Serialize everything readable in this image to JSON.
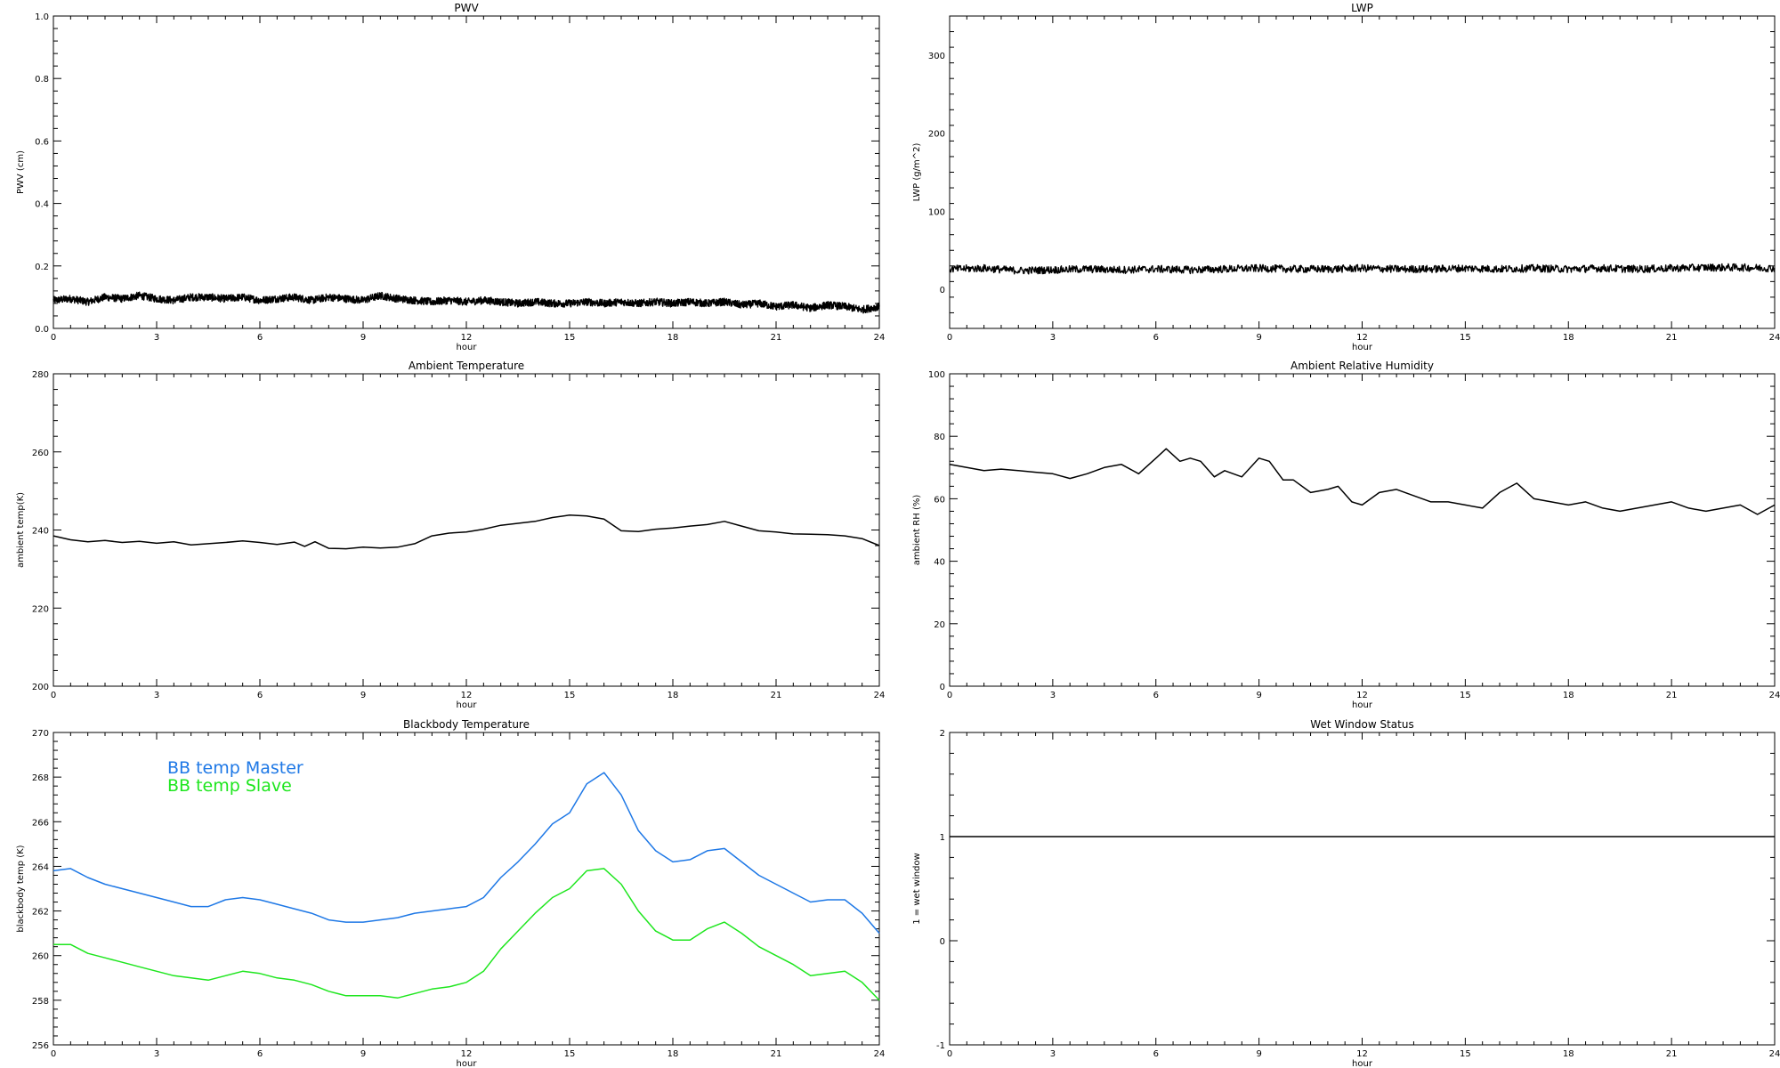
{
  "chart_data": [
    {
      "type": "line",
      "title": "PWV",
      "xlabel": "hour",
      "ylabel": "PWV (cm)",
      "xlim": [
        0,
        24
      ],
      "ylim": [
        0.0,
        1.0
      ],
      "xticks": [
        0,
        3,
        6,
        9,
        12,
        15,
        18,
        21,
        24
      ],
      "yticks": [
        "0.0",
        "0.2",
        "0.4",
        "0.6",
        "0.8",
        "1.0"
      ],
      "grid": false,
      "series": [
        {
          "color": "#000000",
          "noisy": true,
          "x": [
            0,
            0.5,
            1,
            1.5,
            2,
            2.5,
            3,
            3.5,
            4,
            4.5,
            5,
            5.5,
            6,
            6.5,
            7,
            7.5,
            8,
            8.5,
            9,
            9.5,
            10,
            10.5,
            11,
            11.5,
            12,
            12.5,
            13,
            13.5,
            14,
            14.5,
            15,
            15.5,
            16,
            16.5,
            17,
            17.5,
            18,
            18.5,
            19,
            19.5,
            20,
            20.5,
            21,
            21.5,
            22,
            22.5,
            23,
            23.5,
            24
          ],
          "y": [
            0.09,
            0.095,
            0.085,
            0.1,
            0.095,
            0.105,
            0.095,
            0.09,
            0.1,
            0.1,
            0.095,
            0.1,
            0.09,
            0.095,
            0.1,
            0.09,
            0.1,
            0.095,
            0.09,
            0.105,
            0.095,
            0.09,
            0.085,
            0.09,
            0.085,
            0.09,
            0.085,
            0.08,
            0.085,
            0.08,
            0.08,
            0.085,
            0.08,
            0.085,
            0.08,
            0.085,
            0.08,
            0.085,
            0.08,
            0.085,
            0.075,
            0.08,
            0.07,
            0.075,
            0.065,
            0.075,
            0.07,
            0.06,
            0.07
          ]
        }
      ]
    },
    {
      "type": "line",
      "title": "LWP",
      "xlabel": "hour",
      "ylabel": "LWP (g/m^2)",
      "xlim": [
        0,
        24
      ],
      "ylim": [
        -50,
        350
      ],
      "xticks": [
        0,
        3,
        6,
        9,
        12,
        15,
        18,
        21,
        24
      ],
      "yticks": [
        "0",
        "100",
        "200",
        "300"
      ],
      "grid": false,
      "series": [
        {
          "color": "#000000",
          "noisy": true,
          "x": [
            0,
            1,
            2,
            3,
            4,
            5,
            6,
            7,
            8,
            9,
            10,
            11,
            12,
            13,
            14,
            15,
            16,
            17,
            18,
            19,
            20,
            21,
            22,
            23,
            24
          ],
          "y": [
            26,
            27,
            24,
            25,
            26,
            25,
            26,
            25,
            26,
            27,
            26,
            26,
            27,
            26,
            26,
            27,
            26,
            27,
            26,
            27,
            26,
            27,
            28,
            28,
            27
          ]
        }
      ]
    },
    {
      "type": "line",
      "title": "Ambient Temperature",
      "xlabel": "hour",
      "ylabel": "ambient temp(K)",
      "xlim": [
        0,
        24
      ],
      "ylim": [
        200,
        280
      ],
      "xticks": [
        0,
        3,
        6,
        9,
        12,
        15,
        18,
        21,
        24
      ],
      "yticks": [
        "200",
        "220",
        "240",
        "260",
        "280"
      ],
      "grid": false,
      "series": [
        {
          "color": "#000000",
          "x": [
            0,
            0.5,
            1,
            1.5,
            2,
            2.5,
            3,
            3.5,
            4,
            4.5,
            5,
            5.5,
            6,
            6.5,
            7,
            7.3,
            7.6,
            8,
            8.5,
            9,
            9.5,
            10,
            10.5,
            11,
            11.5,
            12,
            12.5,
            13,
            13.5,
            14,
            14.5,
            15,
            15.5,
            16,
            16.5,
            17,
            17.5,
            18,
            18.5,
            19,
            19.5,
            20,
            20.5,
            21,
            21.5,
            22,
            22.5,
            23,
            23.5,
            24
          ],
          "y": [
            238.5,
            237.5,
            237.0,
            237.3,
            236.8,
            237.1,
            236.6,
            237.0,
            236.2,
            236.5,
            236.8,
            237.2,
            236.8,
            236.3,
            236.9,
            235.8,
            237.0,
            235.3,
            235.2,
            235.6,
            235.4,
            235.6,
            236.5,
            238.5,
            239.2,
            239.5,
            240.2,
            241.2,
            241.7,
            242.2,
            243.2,
            243.8,
            243.6,
            242.8,
            239.8,
            239.6,
            240.2,
            240.5,
            241.0,
            241.4,
            242.2,
            241.0,
            239.8,
            239.5,
            239.0,
            238.9,
            238.8,
            238.5,
            237.8,
            236.0
          ]
        }
      ]
    },
    {
      "type": "line",
      "title": "Ambient Relative Humidity",
      "xlabel": "hour",
      "ylabel": "ambient RH (%)",
      "xlim": [
        0,
        24
      ],
      "ylim": [
        0,
        100
      ],
      "xticks": [
        0,
        3,
        6,
        9,
        12,
        15,
        18,
        21,
        24
      ],
      "yticks": [
        "0",
        "20",
        "40",
        "60",
        "80",
        "100"
      ],
      "grid": false,
      "series": [
        {
          "color": "#000000",
          "x": [
            0,
            0.5,
            1,
            1.5,
            2,
            2.5,
            3,
            3.5,
            4,
            4.5,
            5,
            5.5,
            6,
            6.3,
            6.7,
            7,
            7.3,
            7.7,
            8,
            8.5,
            9,
            9.3,
            9.7,
            10,
            10.5,
            11,
            11.3,
            11.7,
            12,
            12.5,
            13,
            13.5,
            14,
            14.5,
            15,
            15.5,
            16,
            16.5,
            17,
            17.5,
            18,
            18.5,
            19,
            19.5,
            20,
            20.5,
            21,
            21.5,
            22,
            22.5,
            23,
            23.5,
            24
          ],
          "y": [
            71,
            70,
            69,
            69.5,
            69,
            68.5,
            68,
            66.5,
            68,
            70,
            71,
            68,
            73,
            76,
            72,
            73,
            72,
            67,
            69,
            67,
            73,
            72,
            66,
            66,
            62,
            63,
            64,
            59,
            58,
            62,
            63,
            61,
            59,
            59,
            58,
            57,
            62,
            65,
            60,
            59,
            58,
            59,
            57,
            56,
            57,
            58,
            59,
            57,
            56,
            57,
            58,
            55,
            58
          ]
        }
      ]
    },
    {
      "type": "line",
      "title": "Blackbody Temperature",
      "xlabel": "hour",
      "ylabel": "blackbody temp (K)",
      "xlim": [
        0,
        24
      ],
      "ylim": [
        256,
        270
      ],
      "xticks": [
        0,
        3,
        6,
        9,
        12,
        15,
        18,
        21,
        24
      ],
      "yticks": [
        "256",
        "258",
        "260",
        "262",
        "264",
        "266",
        "268",
        "270"
      ],
      "grid": false,
      "legend": "top-left",
      "series": [
        {
          "name": "BB temp Master",
          "color": "#1e78e6",
          "x": [
            0,
            0.5,
            1,
            1.5,
            2,
            2.5,
            3,
            3.5,
            4,
            4.5,
            5,
            5.5,
            6,
            6.5,
            7,
            7.5,
            8,
            8.5,
            9,
            9.5,
            10,
            10.5,
            11,
            11.5,
            12,
            12.5,
            13,
            13.5,
            14,
            14.5,
            15,
            15.5,
            16,
            16.5,
            17,
            17.5,
            18,
            18.5,
            19,
            19.5,
            20,
            20.5,
            21,
            21.5,
            22,
            22.5,
            23,
            23.5,
            24
          ],
          "y": [
            263.8,
            263.9,
            263.5,
            263.2,
            263.0,
            262.8,
            262.6,
            262.4,
            262.2,
            262.2,
            262.5,
            262.6,
            262.5,
            262.3,
            262.1,
            261.9,
            261.6,
            261.5,
            261.5,
            261.6,
            261.7,
            261.9,
            262.0,
            262.1,
            262.2,
            262.6,
            263.5,
            264.2,
            265.0,
            265.9,
            266.4,
            267.7,
            268.2,
            267.2,
            265.6,
            264.7,
            264.2,
            264.3,
            264.7,
            264.8,
            264.2,
            263.6,
            263.2,
            262.8,
            262.4,
            262.5,
            262.5,
            261.9,
            261.0
          ]
        },
        {
          "name": "BB temp Slave",
          "color": "#1ee61e",
          "x": [
            0,
            0.5,
            1,
            1.5,
            2,
            2.5,
            3,
            3.5,
            4,
            4.5,
            5,
            5.5,
            6,
            6.5,
            7,
            7.5,
            8,
            8.5,
            9,
            9.5,
            10,
            10.5,
            11,
            11.5,
            12,
            12.5,
            13,
            13.5,
            14,
            14.5,
            15,
            15.5,
            16,
            16.5,
            17,
            17.5,
            18,
            18.5,
            19,
            19.5,
            20,
            20.5,
            21,
            21.5,
            22,
            22.5,
            23,
            23.5,
            24
          ],
          "y": [
            260.5,
            260.5,
            260.1,
            259.9,
            259.7,
            259.5,
            259.3,
            259.1,
            259.0,
            258.9,
            259.1,
            259.3,
            259.2,
            259.0,
            258.9,
            258.7,
            258.4,
            258.2,
            258.2,
            258.2,
            258.1,
            258.3,
            258.5,
            258.6,
            258.8,
            259.3,
            260.3,
            261.1,
            261.9,
            262.6,
            263.0,
            263.8,
            263.9,
            263.2,
            262.0,
            261.1,
            260.7,
            260.7,
            261.2,
            261.5,
            261.0,
            260.4,
            260.0,
            259.6,
            259.1,
            259.2,
            259.3,
            258.8,
            258.0
          ]
        }
      ]
    },
    {
      "type": "line",
      "title": "Wet Window Status",
      "xlabel": "hour",
      "ylabel": "1 = wet window",
      "xlim": [
        0,
        24
      ],
      "ylim": [
        -1,
        2
      ],
      "xticks": [
        0,
        3,
        6,
        9,
        12,
        15,
        18,
        21,
        24
      ],
      "yticks": [
        "-1",
        "0",
        "1",
        "2"
      ],
      "grid": false,
      "series": [
        {
          "color": "#000000",
          "x": [
            0,
            24
          ],
          "y": [
            1,
            1
          ]
        }
      ]
    }
  ]
}
